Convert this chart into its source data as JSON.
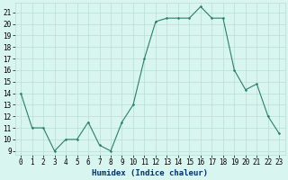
{
  "xlabel": "Humidex (Indice chaleur)",
  "x": [
    0,
    1,
    2,
    3,
    4,
    5,
    6,
    7,
    8,
    9,
    10,
    11,
    12,
    13,
    14,
    15,
    16,
    17,
    18,
    19,
    20,
    21,
    22,
    23
  ],
  "y": [
    14,
    11,
    11,
    9,
    10,
    10,
    11.5,
    9.5,
    9,
    11.5,
    13,
    17,
    20.2,
    20.5,
    20.5,
    20.5,
    21.5,
    20.5,
    20.5,
    16,
    14.3,
    14.8,
    12,
    10.5
  ],
  "line_color": "#2d7d6e",
  "marker_color": "#2d7d6e",
  "bg_color": "#d8f5f0",
  "grid_color": "#b8ddd6",
  "ylim_min": 8.7,
  "ylim_max": 21.8,
  "xlim_min": -0.5,
  "xlim_max": 23.5,
  "yticks": [
    9,
    10,
    11,
    12,
    13,
    14,
    15,
    16,
    17,
    18,
    19,
    20,
    21
  ],
  "xticks": [
    0,
    1,
    2,
    3,
    4,
    5,
    6,
    7,
    8,
    9,
    10,
    11,
    12,
    13,
    14,
    15,
    16,
    17,
    18,
    19,
    20,
    21,
    22,
    23
  ],
  "tick_fontsize": 5.5,
  "label_fontsize": 6.5,
  "label_fontweight": "bold",
  "label_color": "#003366"
}
